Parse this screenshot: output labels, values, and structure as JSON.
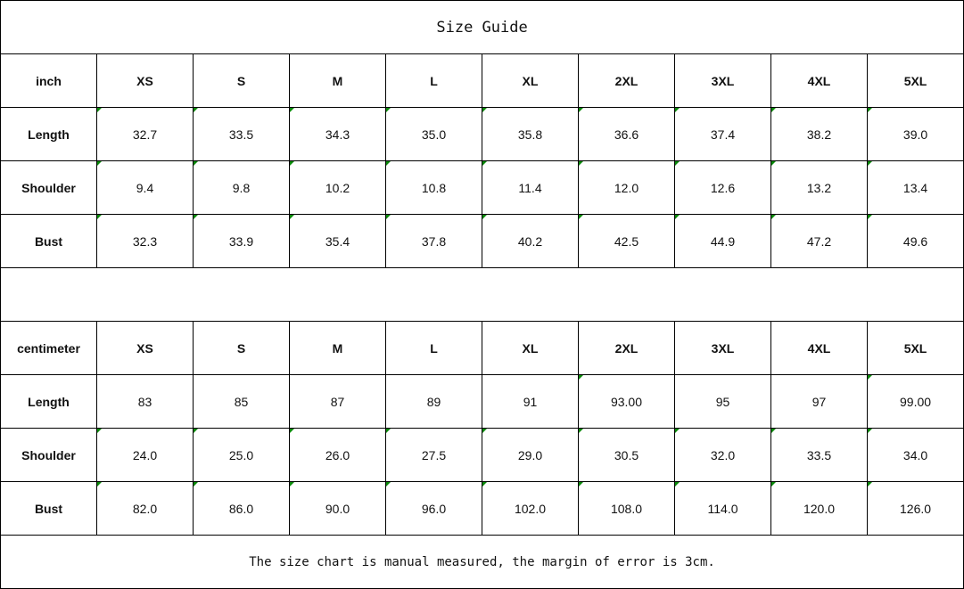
{
  "title": "Size Guide",
  "tables": [
    {
      "unit": "inch",
      "sizes": [
        "XS",
        "S",
        "M",
        "L",
        "XL",
        "2XL",
        "3XL",
        "4XL",
        "5XL"
      ],
      "rows": [
        {
          "label": "Length",
          "values": [
            "32.7",
            "33.5",
            "34.3",
            "35.0",
            "35.8",
            "36.6",
            "37.4",
            "38.2",
            "39.0"
          ],
          "markers": [
            1,
            1,
            1,
            1,
            1,
            1,
            1,
            1,
            1
          ]
        },
        {
          "label": "Shoulder",
          "values": [
            "9.4",
            "9.8",
            "10.2",
            "10.8",
            "11.4",
            "12.0",
            "12.6",
            "13.2",
            "13.4"
          ],
          "markers": [
            1,
            1,
            1,
            1,
            1,
            1,
            1,
            1,
            1
          ]
        },
        {
          "label": "Bust",
          "values": [
            "32.3",
            "33.9",
            "35.4",
            "37.8",
            "40.2",
            "42.5",
            "44.9",
            "47.2",
            "49.6"
          ],
          "markers": [
            1,
            1,
            1,
            1,
            1,
            1,
            1,
            1,
            1
          ]
        }
      ]
    },
    {
      "unit": "centimeter",
      "sizes": [
        "XS",
        "S",
        "M",
        "L",
        "XL",
        "2XL",
        "3XL",
        "4XL",
        "5XL"
      ],
      "rows": [
        {
          "label": "Length",
          "values": [
            "83",
            "85",
            "87",
            "89",
            "91",
            "93.00",
            "95",
            "97",
            "99.00"
          ],
          "markers": [
            0,
            0,
            0,
            0,
            0,
            1,
            0,
            0,
            1
          ]
        },
        {
          "label": "Shoulder",
          "values": [
            "24.0",
            "25.0",
            "26.0",
            "27.5",
            "29.0",
            "30.5",
            "32.0",
            "33.5",
            "34.0"
          ],
          "markers": [
            1,
            1,
            1,
            1,
            1,
            1,
            1,
            1,
            1
          ]
        },
        {
          "label": "Bust",
          "values": [
            "82.0",
            "86.0",
            "90.0",
            "96.0",
            "102.0",
            "108.0",
            "114.0",
            "120.0",
            "126.0"
          ],
          "markers": [
            1,
            1,
            1,
            1,
            1,
            1,
            1,
            1,
            1
          ]
        }
      ]
    }
  ],
  "note": "The size chart is manual measured, the margin of error is 3cm.",
  "colors": {
    "marker": "#0a8a0a",
    "border": "#000000"
  }
}
